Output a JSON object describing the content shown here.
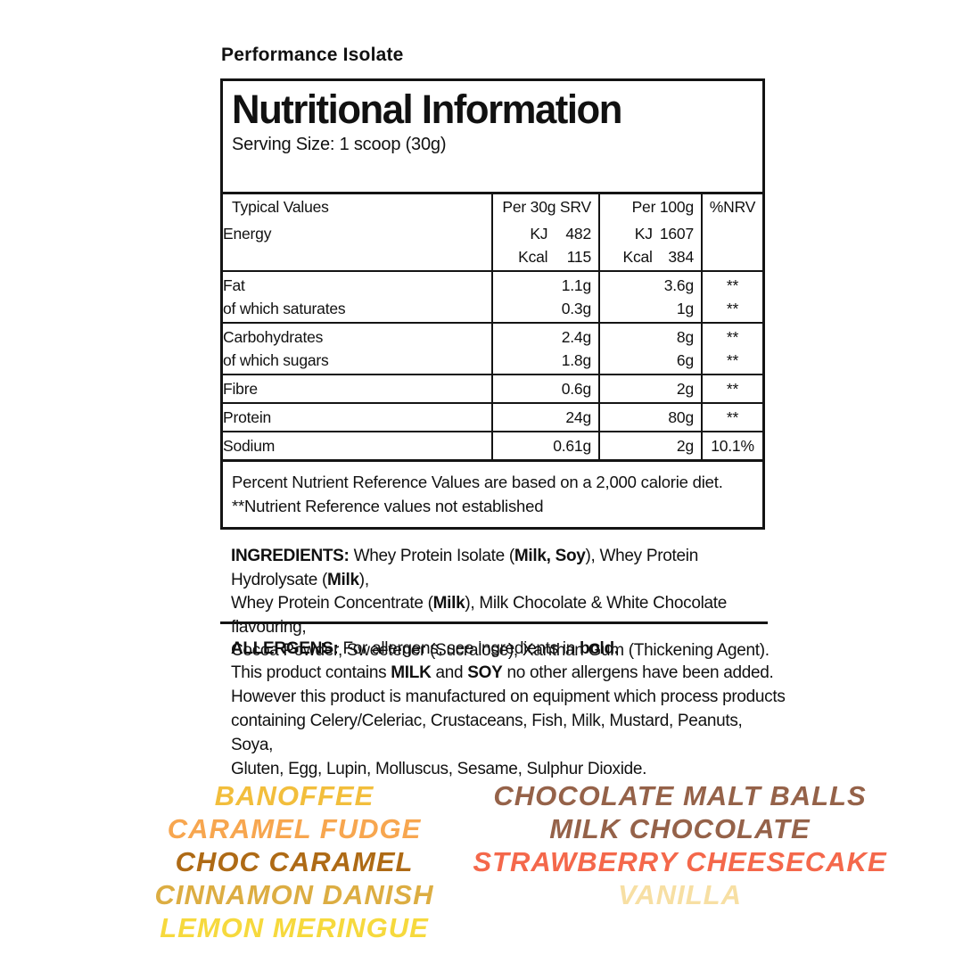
{
  "product": {
    "title": "Performance Isolate"
  },
  "panel": {
    "heading": "Nutritional Information",
    "serving_size": "Serving Size: 1 scoop (30g)"
  },
  "table": {
    "col_headers": [
      "Typical Values",
      "Per 30g SRV",
      "Per 100g",
      "%NRV"
    ],
    "rows": [
      {
        "lines": [
          {
            "label": "Energy",
            "srv_unit": "KJ",
            "srv": "482",
            "p100_unit": "KJ",
            "p100": "1607",
            "nrv": ""
          },
          {
            "label": "",
            "srv_unit": "Kcal",
            "srv": "115",
            "p100_unit": "Kcal",
            "p100": "384",
            "nrv": ""
          }
        ]
      },
      {
        "lines": [
          {
            "label": "Fat",
            "srv": "1.1g",
            "p100": "3.6g",
            "nrv": "**"
          },
          {
            "label": "of which saturates",
            "srv": "0.3g",
            "p100": "1g",
            "nrv": "**"
          }
        ]
      },
      {
        "lines": [
          {
            "label": "Carbohydrates",
            "srv": "2.4g",
            "p100": "8g",
            "nrv": "**"
          },
          {
            "label": "of which sugars",
            "srv": "1.8g",
            "p100": "6g",
            "nrv": "**"
          }
        ]
      },
      {
        "lines": [
          {
            "label": "Fibre",
            "srv": "0.6g",
            "p100": "2g",
            "nrv": "**"
          }
        ]
      },
      {
        "lines": [
          {
            "label": "Protein",
            "srv": "24g",
            "p100": "80g",
            "nrv": "**"
          }
        ]
      },
      {
        "lines": [
          {
            "label": "Sodium",
            "srv": "0.61g",
            "p100": "2g",
            "nrv": "10.1%"
          }
        ]
      }
    ],
    "footnotes": [
      "Percent Nutrient Reference Values are based on a 2,000 calorie diet.",
      "**Nutrient Reference values not established"
    ]
  },
  "ingredients": {
    "lines": [
      [
        {
          "text": "INGREDIENTS: ",
          "bold": true
        },
        {
          "text": "Whey Protein Isolate (",
          "bold": false
        },
        {
          "text": "Milk, Soy",
          "bold": true
        },
        {
          "text": "), Whey Protein Hydrolysate (",
          "bold": false
        },
        {
          "text": "Milk",
          "bold": true
        },
        {
          "text": "),",
          "bold": false
        }
      ],
      [
        {
          "text": "Whey Protein Concentrate (",
          "bold": false
        },
        {
          "text": "Milk",
          "bold": true
        },
        {
          "text": "), Milk Chocolate & White Chocolate flavouring,",
          "bold": false
        }
      ],
      [
        {
          "text": "Cocoa Powder, Sweetener (Sucralose), Xanthan Gum (Thickening Agent).",
          "bold": false
        }
      ]
    ]
  },
  "allergens": {
    "lines": [
      [
        {
          "text": "ALLERGENS: ",
          "bold": true
        },
        {
          "text": "For allergens, see ingredients in ",
          "bold": false
        },
        {
          "text": "bold.",
          "bold": true
        }
      ],
      [
        {
          "text": "This product contains ",
          "bold": false
        },
        {
          "text": "MILK",
          "bold": true
        },
        {
          "text": " and ",
          "bold": false
        },
        {
          "text": "SOY",
          "bold": true
        },
        {
          "text": " no other allergens have been added.",
          "bold": false
        }
      ],
      [
        {
          "text": "However this product is manufactured on equipment which process products",
          "bold": false
        }
      ],
      [
        {
          "text": "containing Celery/Celeriac, Crustaceans, Fish, Milk, Mustard, Peanuts, Soya,",
          "bold": false
        }
      ],
      [
        {
          "text": "Gluten, Egg, Lupin, Molluscus, Sesame, Sulphur Dioxide.",
          "bold": false
        }
      ]
    ]
  },
  "flavours": {
    "left": [
      {
        "name": "BANOFFEE",
        "color": "#F2BE3C"
      },
      {
        "name": "CARAMEL FUDGE",
        "color": "#F7A64F"
      },
      {
        "name": "CHOC CARAMEL",
        "color": "#AE6A15"
      },
      {
        "name": "CINNAMON DANISH",
        "color": "#DCAD42"
      },
      {
        "name": "LEMON MERINGUE",
        "color": "#F6D93D"
      }
    ],
    "right": [
      {
        "name": "CHOCOLATE MALT BALLS",
        "color": "#956249"
      },
      {
        "name": "MILK CHOCOLATE",
        "color": "#956249"
      },
      {
        "name": "STRAWBERRY CHEESECAKE",
        "color": "#F4684B"
      },
      {
        "name": "VANILLA",
        "color": "#F7DFA3"
      }
    ]
  },
  "colors": {
    "border": "#141414",
    "text": "#111111",
    "background": "#ffffff"
  }
}
